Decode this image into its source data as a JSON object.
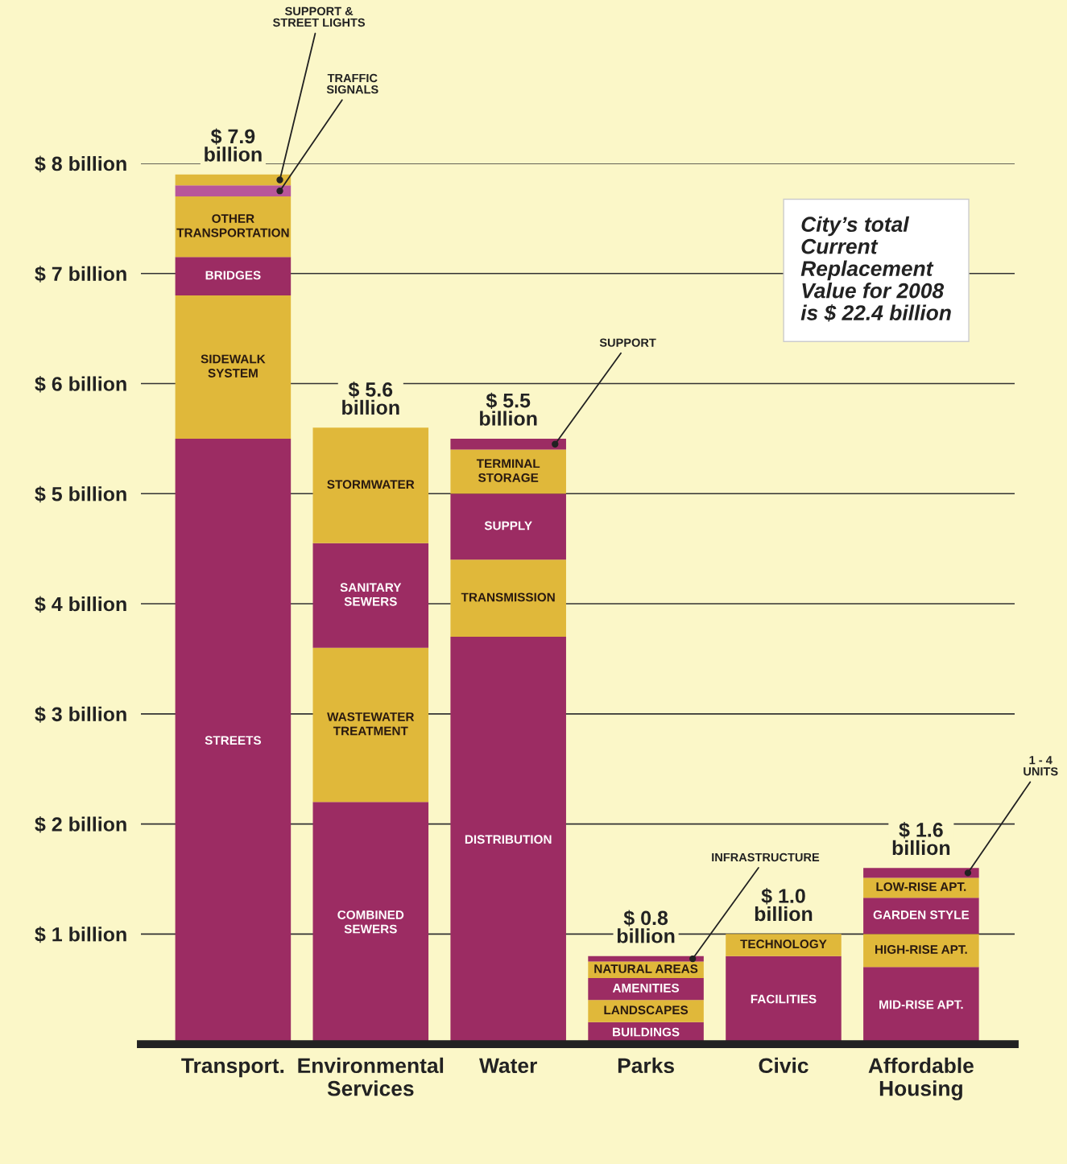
{
  "chart_data": {
    "type": "bar",
    "stacked": true,
    "categories": [
      "Transport.",
      "Environmental\nServices",
      "Water",
      "Parks",
      "Civic",
      "Affordable\nHousing"
    ],
    "series": [
      {
        "name": "STREETS",
        "color": "#9c2c63",
        "values": [
          5.5,
          null,
          null,
          null,
          null,
          null
        ]
      },
      {
        "name": "SIDEWALK\nSYSTEM",
        "color": "#e0b83a",
        "values": [
          1.3,
          null,
          null,
          null,
          null,
          null
        ]
      },
      {
        "name": "BRIDGES",
        "color": "#9c2c63",
        "values": [
          0.35,
          null,
          null,
          null,
          null,
          null
        ]
      },
      {
        "name": "OTHER\nTRANSPORTATION",
        "color": "#e0b83a",
        "values": [
          0.55,
          null,
          null,
          null,
          null,
          null
        ]
      },
      {
        "name": "TRAFFIC\nSIGNALS",
        "color": "#b8569a",
        "values": [
          0.1,
          null,
          null,
          null,
          null,
          null
        ]
      },
      {
        "name": "SUPPORT &\nSTREET LIGHTS",
        "color": "#e0b83a",
        "values": [
          0.1,
          null,
          null,
          null,
          null,
          null
        ]
      },
      {
        "name": "COMBINED\nSEWERS",
        "color": "#9c2c63",
        "values": [
          null,
          2.2,
          null,
          null,
          null,
          null
        ]
      },
      {
        "name": "WASTEWATER\nTREATMENT",
        "color": "#e0b83a",
        "values": [
          null,
          1.4,
          null,
          null,
          null,
          null
        ]
      },
      {
        "name": "SANITARY\nSEWERS",
        "color": "#9c2c63",
        "values": [
          null,
          0.95,
          null,
          null,
          null,
          null
        ]
      },
      {
        "name": "STORMWATER",
        "color": "#e0b83a",
        "values": [
          null,
          1.05,
          null,
          null,
          null,
          null
        ]
      },
      {
        "name": "DISTRIBUTION",
        "color": "#9c2c63",
        "values": [
          null,
          null,
          3.7,
          null,
          null,
          null
        ]
      },
      {
        "name": "TRANSMISSION",
        "color": "#e0b83a",
        "values": [
          null,
          null,
          0.7,
          null,
          null,
          null
        ]
      },
      {
        "name": "SUPPLY",
        "color": "#9c2c63",
        "values": [
          null,
          null,
          0.6,
          null,
          null,
          null
        ]
      },
      {
        "name": "TERMINAL\nSTORAGE",
        "color": "#e0b83a",
        "values": [
          null,
          null,
          0.4,
          null,
          null,
          null
        ]
      },
      {
        "name": "SUPPORT",
        "color": "#9c2c63",
        "values": [
          null,
          null,
          0.1,
          null,
          null,
          null
        ]
      },
      {
        "name": "BUILDINGS",
        "color": "#9c2c63",
        "values": [
          null,
          null,
          null,
          0.2,
          null,
          null
        ]
      },
      {
        "name": "LANDSCAPES",
        "color": "#e0b83a",
        "values": [
          null,
          null,
          null,
          0.2,
          null,
          null
        ]
      },
      {
        "name": "AMENITIES",
        "color": "#9c2c63",
        "values": [
          null,
          null,
          null,
          0.2,
          null,
          null
        ]
      },
      {
        "name": "NATURAL AREAS",
        "color": "#e0b83a",
        "values": [
          null,
          null,
          null,
          0.15,
          null,
          null
        ]
      },
      {
        "name": "INFRASTRUCTURE",
        "color": "#9c2c63",
        "values": [
          null,
          null,
          null,
          0.05,
          null,
          null
        ]
      },
      {
        "name": "FACILITIES",
        "color": "#9c2c63",
        "values": [
          null,
          null,
          null,
          null,
          0.8,
          null
        ]
      },
      {
        "name": "TECHNOLOGY",
        "color": "#e0b83a",
        "values": [
          null,
          null,
          null,
          null,
          0.2,
          null
        ]
      },
      {
        "name": "MID-RISE APT.",
        "color": "#9c2c63",
        "values": [
          null,
          null,
          null,
          null,
          null,
          0.7
        ]
      },
      {
        "name": "HIGH-RISE APT.",
        "color": "#e0b83a",
        "values": [
          null,
          null,
          null,
          null,
          null,
          0.3
        ]
      },
      {
        "name": "GARDEN STYLE",
        "color": "#9c2c63",
        "values": [
          null,
          null,
          null,
          null,
          null,
          0.33
        ]
      },
      {
        "name": "LOW-RISE APT.",
        "color": "#e0b83a",
        "values": [
          null,
          null,
          null,
          null,
          null,
          0.18
        ]
      },
      {
        "name": "1 - 4\nUNITS",
        "color": "#9c2c63",
        "values": [
          null,
          null,
          null,
          null,
          null,
          0.09
        ]
      }
    ],
    "totals": [
      "$ 7.9\nbillion",
      "$ 5.6\nbillion",
      "$ 5.5\nbillion",
      "$ 0.8\nbillion",
      "$ 1.0\nbillion",
      "$ 1.6\nbillion"
    ],
    "ylim": [
      0,
      8
    ],
    "yticks": [
      {
        "value": 1,
        "label": "$ 1 billion"
      },
      {
        "value": 2,
        "label": "$ 2 billion"
      },
      {
        "value": 3,
        "label": "$ 3 billion"
      },
      {
        "value": 4,
        "label": "$ 4 billion"
      },
      {
        "value": 5,
        "label": "$ 5 billion"
      },
      {
        "value": 6,
        "label": "$ 6 billion"
      },
      {
        "value": 7,
        "label": "$ 7 billion"
      },
      {
        "value": 8,
        "label": "$ 8 billion"
      }
    ],
    "grid": "y",
    "annotations": [
      "City’s total\nCurrent\nReplacement\nValue for 2008\nis $ 22.4 billion"
    ]
  }
}
